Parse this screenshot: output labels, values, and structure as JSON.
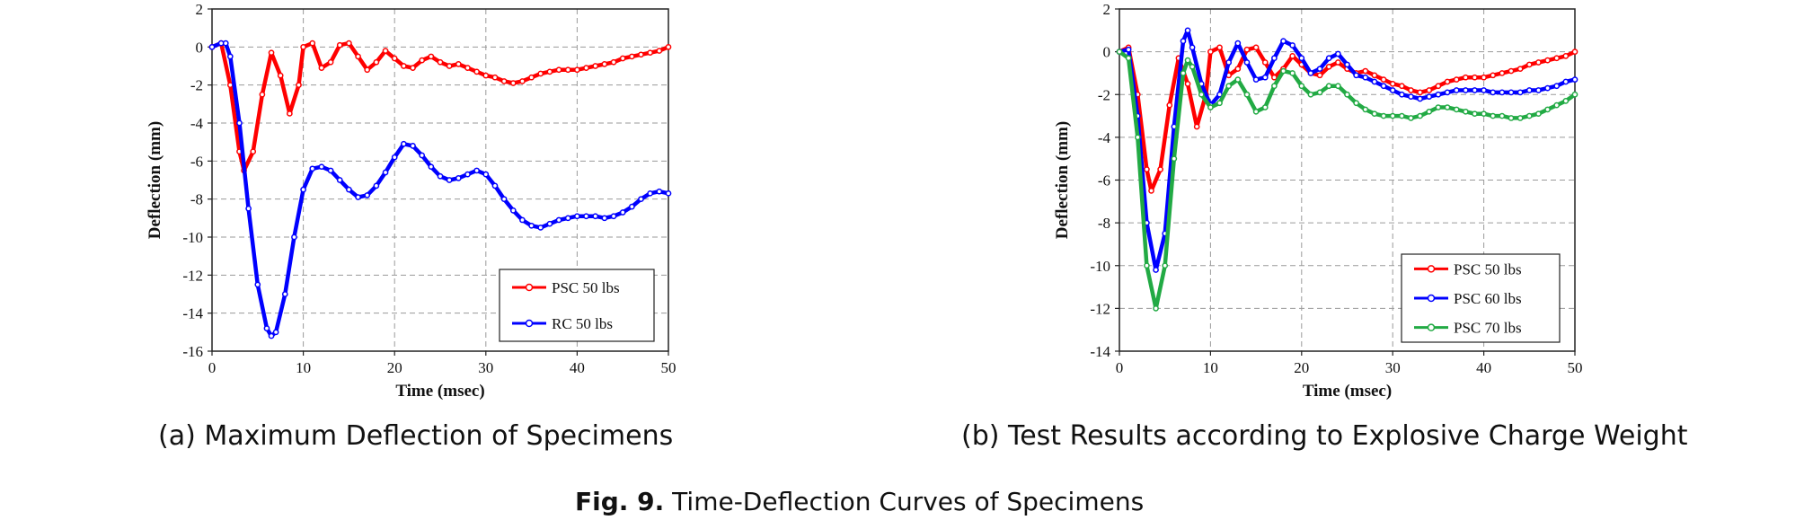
{
  "captions": {
    "a": "(a) Maximum Deflection of Specimens",
    "b": "(b) Test Results according to Explosive Charge Weight",
    "figure_label": "Fig. 9.",
    "figure_title": " Time-Deflection Curves of Specimens"
  },
  "chart_data": [
    {
      "type": "line",
      "xlabel": "Time (msec)",
      "ylabel": "Deflection (mm)",
      "xlim": [
        0,
        50
      ],
      "ylim": [
        -16,
        2
      ],
      "xticks": [
        0,
        10,
        20,
        30,
        40,
        50
      ],
      "yticks": [
        2,
        0,
        -2,
        -4,
        -6,
        -8,
        -10,
        -12,
        -14,
        -16
      ],
      "grid": true,
      "legend_position": "bottom-right",
      "series": [
        {
          "name": "PSC 50 lbs",
          "color": "#ff0000",
          "x": [
            0,
            1,
            2,
            3,
            3.5,
            4.5,
            5.5,
            6.5,
            7.5,
            8.5,
            9.5,
            10,
            11,
            12,
            13,
            14,
            15,
            16,
            17,
            18,
            19,
            20,
            21,
            22,
            23,
            24,
            25,
            26,
            27,
            28,
            29,
            30,
            31,
            32,
            33,
            34,
            35,
            36,
            37,
            38,
            39,
            40,
            41,
            42,
            43,
            44,
            45,
            46,
            47,
            48,
            49,
            50
          ],
          "y": [
            0,
            0.2,
            -2.0,
            -5.5,
            -6.5,
            -5.5,
            -2.5,
            -0.3,
            -1.5,
            -3.5,
            -2.0,
            0,
            0.2,
            -1.1,
            -0.8,
            0.1,
            0.2,
            -0.5,
            -1.2,
            -0.8,
            -0.2,
            -0.6,
            -1.0,
            -1.1,
            -0.7,
            -0.5,
            -0.8,
            -1.0,
            -0.9,
            -1.1,
            -1.3,
            -1.5,
            -1.6,
            -1.8,
            -1.9,
            -1.8,
            -1.6,
            -1.4,
            -1.3,
            -1.2,
            -1.2,
            -1.2,
            -1.1,
            -1.0,
            -0.9,
            -0.8,
            -0.6,
            -0.5,
            -0.4,
            -0.3,
            -0.2,
            0
          ]
        },
        {
          "name": "RC 50 lbs",
          "color": "#0000ff",
          "x": [
            0,
            1,
            1.5,
            2,
            3,
            4,
            5,
            6,
            6.5,
            7,
            8,
            9,
            10,
            11,
            12,
            13,
            14,
            15,
            16,
            17,
            18,
            19,
            20,
            21,
            22,
            23,
            24,
            25,
            26,
            27,
            28,
            29,
            30,
            31,
            32,
            33,
            34,
            35,
            36,
            37,
            38,
            39,
            40,
            41,
            42,
            43,
            44,
            45,
            46,
            47,
            48,
            49,
            50
          ],
          "y": [
            0,
            0.2,
            0.2,
            -0.5,
            -4.0,
            -8.5,
            -12.5,
            -14.8,
            -15.2,
            -15.0,
            -13.0,
            -10.0,
            -7.5,
            -6.4,
            -6.3,
            -6.5,
            -7.0,
            -7.5,
            -7.9,
            -7.8,
            -7.3,
            -6.6,
            -5.8,
            -5.1,
            -5.2,
            -5.7,
            -6.3,
            -6.8,
            -7.0,
            -6.9,
            -6.7,
            -6.5,
            -6.7,
            -7.3,
            -8.0,
            -8.6,
            -9.1,
            -9.4,
            -9.5,
            -9.3,
            -9.1,
            -9.0,
            -8.9,
            -8.9,
            -8.9,
            -9.0,
            -8.9,
            -8.7,
            -8.4,
            -8.0,
            -7.7,
            -7.6,
            -7.7
          ]
        }
      ],
      "legend": [
        "PSC 50 lbs",
        "RC 50 lbs"
      ]
    },
    {
      "type": "line",
      "xlabel": "Time (msec)",
      "ylabel": "Deflection (mm)",
      "xlim": [
        0,
        50
      ],
      "ylim": [
        -14,
        2
      ],
      "xticks": [
        0,
        10,
        20,
        30,
        40,
        50
      ],
      "yticks": [
        2,
        0,
        -2,
        -4,
        -6,
        -8,
        -10,
        -12,
        -14
      ],
      "grid": true,
      "legend_position": "bottom-right",
      "series": [
        {
          "name": "PSC 50 lbs",
          "color": "#ff0000",
          "x": [
            0,
            1,
            2,
            3,
            3.5,
            4.5,
            5.5,
            6.5,
            7.5,
            8.5,
            9.5,
            10,
            11,
            12,
            13,
            14,
            15,
            16,
            17,
            18,
            19,
            20,
            21,
            22,
            23,
            24,
            25,
            26,
            27,
            28,
            29,
            30,
            31,
            32,
            33,
            34,
            35,
            36,
            37,
            38,
            39,
            40,
            41,
            42,
            43,
            44,
            45,
            46,
            47,
            48,
            49,
            50
          ],
          "y": [
            0,
            0.2,
            -2.0,
            -5.5,
            -6.5,
            -5.5,
            -2.5,
            -0.3,
            -1.5,
            -3.5,
            -2.0,
            0,
            0.2,
            -1.1,
            -0.8,
            0.1,
            0.2,
            -0.5,
            -1.2,
            -0.8,
            -0.2,
            -0.6,
            -1.0,
            -1.1,
            -0.7,
            -0.5,
            -0.8,
            -1.0,
            -0.9,
            -1.1,
            -1.3,
            -1.5,
            -1.6,
            -1.8,
            -1.9,
            -1.8,
            -1.6,
            -1.4,
            -1.3,
            -1.2,
            -1.2,
            -1.2,
            -1.1,
            -1.0,
            -0.9,
            -0.8,
            -0.6,
            -0.5,
            -0.4,
            -0.3,
            -0.2,
            0
          ]
        },
        {
          "name": "PSC 60 lbs",
          "color": "#0000ff",
          "x": [
            0,
            1,
            2,
            3,
            4,
            5,
            6,
            7,
            7.5,
            8,
            9,
            10,
            11,
            12,
            13,
            14,
            15,
            16,
            17,
            18,
            19,
            20,
            21,
            22,
            23,
            24,
            25,
            26,
            27,
            28,
            29,
            30,
            31,
            32,
            33,
            34,
            35,
            36,
            37,
            38,
            39,
            40,
            41,
            42,
            43,
            44,
            45,
            46,
            47,
            48,
            49,
            50
          ],
          "y": [
            0,
            0.1,
            -3.0,
            -8.0,
            -10.2,
            -8.5,
            -3.5,
            0.5,
            1.0,
            0.2,
            -1.5,
            -2.5,
            -2.0,
            -0.5,
            0.4,
            -0.5,
            -1.3,
            -1.2,
            -0.3,
            0.5,
            0.3,
            -0.3,
            -1.0,
            -0.8,
            -0.3,
            -0.1,
            -0.6,
            -1.1,
            -1.2,
            -1.4,
            -1.6,
            -1.8,
            -2.0,
            -2.1,
            -2.2,
            -2.1,
            -2.0,
            -1.9,
            -1.8,
            -1.8,
            -1.8,
            -1.8,
            -1.9,
            -1.9,
            -1.9,
            -1.9,
            -1.8,
            -1.8,
            -1.7,
            -1.6,
            -1.4,
            -1.3
          ]
        },
        {
          "name": "PSC 70 lbs",
          "color": "#22aa44",
          "x": [
            0,
            1,
            2,
            3,
            4,
            5,
            6,
            7,
            7.5,
            8,
            9,
            10,
            11,
            12,
            13,
            14,
            15,
            16,
            17,
            18,
            19,
            20,
            21,
            22,
            23,
            24,
            25,
            26,
            27,
            28,
            29,
            30,
            31,
            32,
            33,
            34,
            35,
            36,
            37,
            38,
            39,
            40,
            41,
            42,
            43,
            44,
            45,
            46,
            47,
            48,
            49,
            50
          ],
          "y": [
            0,
            -0.3,
            -4.0,
            -10.0,
            -12.0,
            -10.0,
            -5.0,
            -1.0,
            -0.4,
            -0.7,
            -2.0,
            -2.6,
            -2.4,
            -1.6,
            -1.3,
            -2.0,
            -2.8,
            -2.6,
            -1.6,
            -0.9,
            -1.0,
            -1.6,
            -2.0,
            -1.9,
            -1.6,
            -1.6,
            -2.0,
            -2.4,
            -2.7,
            -2.9,
            -3.0,
            -3.0,
            -3.0,
            -3.1,
            -3.0,
            -2.8,
            -2.6,
            -2.6,
            -2.7,
            -2.8,
            -2.9,
            -2.9,
            -3.0,
            -3.0,
            -3.1,
            -3.1,
            -3.0,
            -2.9,
            -2.7,
            -2.5,
            -2.3,
            -2.0
          ]
        }
      ],
      "legend": [
        "PSC 50 lbs",
        "PSC 60 lbs",
        "PSC 70 lbs"
      ]
    }
  ]
}
